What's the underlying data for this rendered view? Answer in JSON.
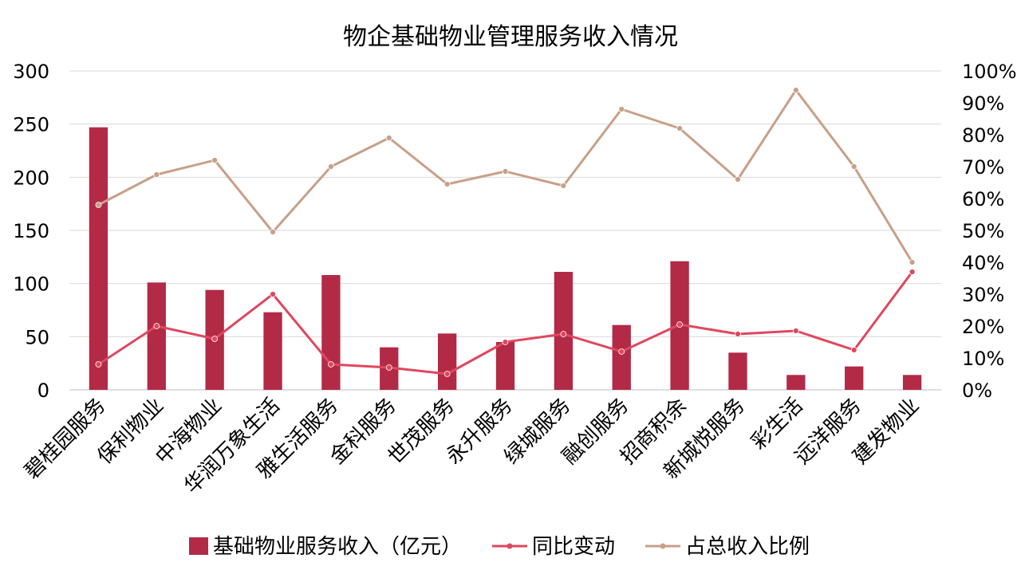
{
  "chart_data": {
    "type": "bar",
    "title": "物企基础物业管理服务收入情况",
    "categories": [
      "碧桂园服务",
      "保利物业",
      "中海物业",
      "华润万象生活",
      "雅生活服务",
      "金科服务",
      "世茂服务",
      "永升服务",
      "绿城服务",
      "融创服务",
      "招商积余",
      "新城悦服务",
      "彩生活",
      "远洋服务",
      "建发物业"
    ],
    "series": [
      {
        "name": "基础物业服务收入（亿元）",
        "kind": "bar",
        "axis": "left",
        "color": "#b22a46",
        "values": [
          247,
          101,
          94,
          73,
          108,
          40,
          53,
          45,
          111,
          61,
          121,
          35,
          14,
          22,
          14
        ]
      },
      {
        "name": "同比变动",
        "kind": "line",
        "axis": "right",
        "color": "#e0475e",
        "values": [
          8,
          20,
          16,
          30,
          8,
          7,
          5,
          15,
          17.5,
          12,
          20.5,
          17.5,
          18.5,
          12.5,
          37
        ]
      },
      {
        "name": "占总收入比例",
        "kind": "line",
        "axis": "right",
        "color": "#c8a088",
        "values": [
          58,
          67.5,
          72,
          49.5,
          70,
          79,
          64.5,
          68.5,
          64,
          88,
          82,
          66,
          94,
          70,
          40
        ]
      }
    ],
    "y_left": {
      "min": 0,
      "max": 300,
      "ticks": [
        "0",
        "50",
        "100",
        "150",
        "200",
        "250",
        "300"
      ]
    },
    "y_right": {
      "min": 0,
      "max": 100,
      "ticks": [
        "0%",
        "10%",
        "20%",
        "30%",
        "40%",
        "50%",
        "60%",
        "70%",
        "80%",
        "90%",
        "100%"
      ]
    },
    "grid": true,
    "legend_position": "bottom"
  }
}
